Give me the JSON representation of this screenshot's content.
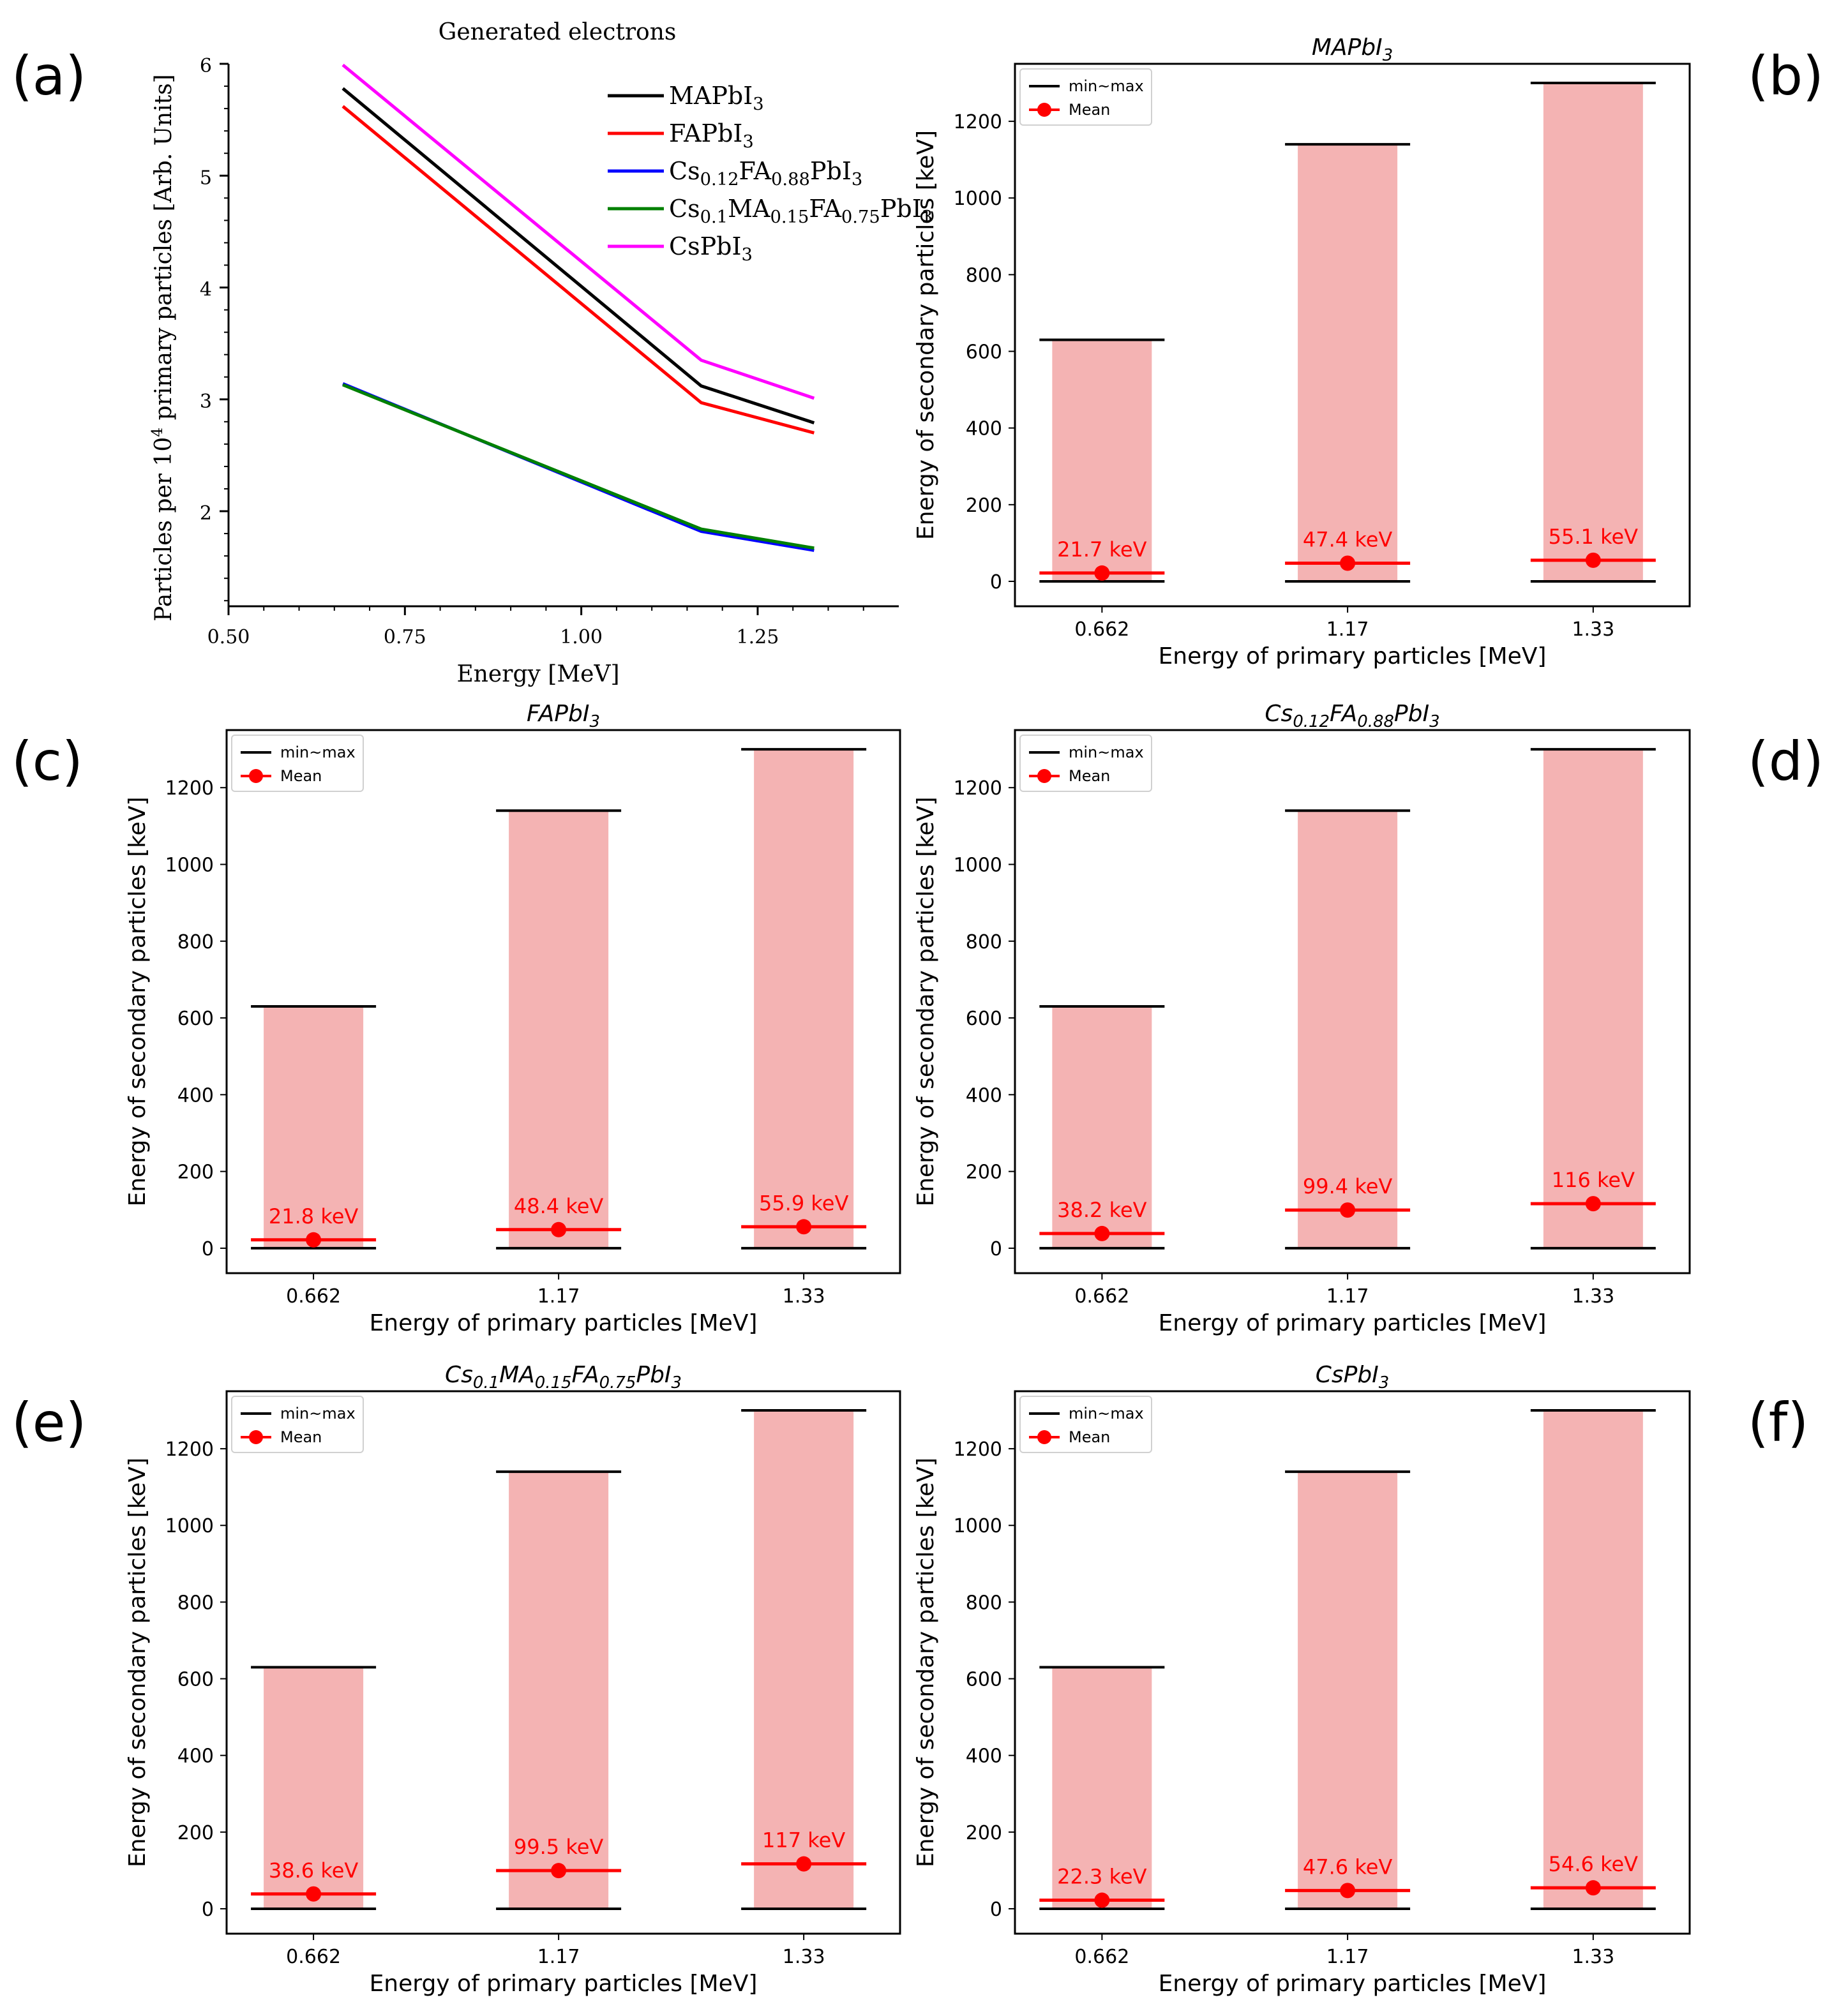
{
  "panels": [
    {
      "letter": "(a)"
    },
    {
      "letter": "(b)"
    },
    {
      "letter": "(c)"
    },
    {
      "letter": "(d)"
    },
    {
      "letter": "(e)"
    },
    {
      "letter": "(f)"
    }
  ],
  "chart_data": [
    {
      "type": "line",
      "panel": "(a)",
      "title": "Generated electrons",
      "xlabel": "Energy [MeV]",
      "ylabel": "Particles per 10^4 primary particles [Arb. Units]",
      "xlim": [
        0.5,
        1.45
      ],
      "ylim": [
        1.15,
        6.0
      ],
      "xticks": [
        "0.50",
        "0.75",
        "1.00",
        "1.25"
      ],
      "yticks": [
        "2",
        "3",
        "4",
        "5",
        "6"
      ],
      "x": [
        0.662,
        1.17,
        1.33
      ],
      "series": [
        {
          "name": "MAPbI3",
          "color": "#000000",
          "values": [
            5.78,
            3.12,
            2.79
          ]
        },
        {
          "name": "FAPbI3",
          "color": "#ff0000",
          "values": [
            5.62,
            2.97,
            2.7
          ]
        },
        {
          "name": "Cs0.12FA0.88PbI3",
          "color": "#0000ff",
          "values": [
            3.14,
            1.82,
            1.65
          ]
        },
        {
          "name": "Cs0.1MA0.15FA0.75PbI3",
          "color": "#008000",
          "values": [
            3.13,
            1.84,
            1.67
          ]
        },
        {
          "name": "CsPbI3",
          "color": "#ff00ff",
          "values": [
            5.99,
            3.35,
            3.01
          ]
        }
      ]
    },
    {
      "type": "bar",
      "panel": "(b)",
      "title": "MAPbI3",
      "xlabel": "Energy of primary particles [MeV]",
      "ylabel": "Energy of secondary particles [keV]",
      "ylim": [
        -65,
        1350
      ],
      "yticks": [
        "0",
        "200",
        "400",
        "600",
        "800",
        "1000",
        "1200"
      ],
      "categories": [
        "0.662",
        "1.17",
        "1.33"
      ],
      "min": [
        0,
        0,
        0
      ],
      "max": [
        630,
        1140,
        1300
      ],
      "mean": [
        21.7,
        47.4,
        55.1
      ],
      "mean_labels": [
        "21.7 keV",
        "47.4 keV",
        "55.1 keV"
      ],
      "legend": [
        "min~max",
        "Mean"
      ]
    },
    {
      "type": "bar",
      "panel": "(c)",
      "title": "FAPbI3",
      "xlabel": "Energy of primary particles [MeV]",
      "ylabel": "Energy of secondary particles [keV]",
      "ylim": [
        -65,
        1350
      ],
      "yticks": [
        "0",
        "200",
        "400",
        "600",
        "800",
        "1000",
        "1200"
      ],
      "categories": [
        "0.662",
        "1.17",
        "1.33"
      ],
      "min": [
        0,
        0,
        0
      ],
      "max": [
        630,
        1140,
        1300
      ],
      "mean": [
        21.8,
        48.4,
        55.9
      ],
      "mean_labels": [
        "21.8 keV",
        "48.4 keV",
        "55.9 keV"
      ],
      "legend": [
        "min~max",
        "Mean"
      ]
    },
    {
      "type": "bar",
      "panel": "(d)",
      "title": "Cs0.12FA0.88PbI3",
      "xlabel": "Energy of primary particles [MeV]",
      "ylabel": "Energy of secondary particles [keV]",
      "ylim": [
        -65,
        1350
      ],
      "yticks": [
        "0",
        "200",
        "400",
        "600",
        "800",
        "1000",
        "1200"
      ],
      "categories": [
        "0.662",
        "1.17",
        "1.33"
      ],
      "min": [
        0,
        0,
        0
      ],
      "max": [
        630,
        1140,
        1300
      ],
      "mean": [
        38.2,
        99.4,
        116
      ],
      "mean_labels": [
        "38.2 keV",
        "99.4 keV",
        "116 keV"
      ],
      "legend": [
        "min~max",
        "Mean"
      ]
    },
    {
      "type": "bar",
      "panel": "(e)",
      "title": "Cs0.1MA0.15FA0.75PbI3",
      "xlabel": "Energy of primary particles [MeV]",
      "ylabel": "Energy of secondary particles [keV]",
      "ylim": [
        -65,
        1350
      ],
      "yticks": [
        "0",
        "200",
        "400",
        "600",
        "800",
        "1000",
        "1200"
      ],
      "categories": [
        "0.662",
        "1.17",
        "1.33"
      ],
      "min": [
        0,
        0,
        0
      ],
      "max": [
        630,
        1140,
        1300
      ],
      "mean": [
        38.6,
        99.5,
        117
      ],
      "mean_labels": [
        "38.6 keV",
        "99.5 keV",
        "117 keV"
      ],
      "legend": [
        "min~max",
        "Mean"
      ]
    },
    {
      "type": "bar",
      "panel": "(f)",
      "title": "CsPbI3",
      "xlabel": "Energy of primary particles [MeV]",
      "ylabel": "Energy of secondary particles [keV]",
      "ylim": [
        -65,
        1350
      ],
      "yticks": [
        "0",
        "200",
        "400",
        "600",
        "800",
        "1000",
        "1200"
      ],
      "categories": [
        "0.662",
        "1.17",
        "1.33"
      ],
      "min": [
        0,
        0,
        0
      ],
      "max": [
        630,
        1140,
        1300
      ],
      "mean": [
        22.3,
        47.6,
        54.6
      ],
      "mean_labels": [
        "22.3 keV",
        "47.6 keV",
        "54.6 keV"
      ],
      "legend": [
        "min~max",
        "Mean"
      ]
    }
  ],
  "colors": {
    "bar_fill": "#f4b3b3",
    "mean": "#ff0000",
    "minmax": "#000000",
    "frame": "#000000"
  }
}
